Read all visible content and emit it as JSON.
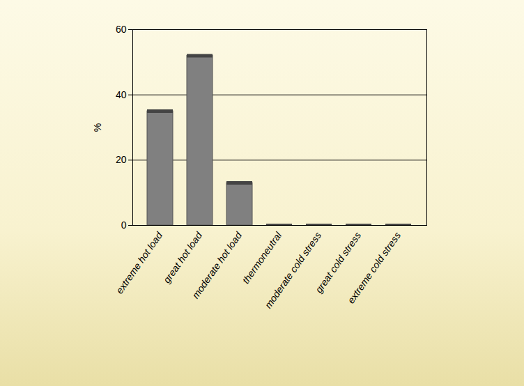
{
  "chart_data": {
    "type": "bar",
    "categories": [
      "extreme hot load",
      "great hot load",
      "moderate hot load",
      "thermoneutral",
      "moderate cold stress",
      "great cold stress",
      "extreme cold stress"
    ],
    "values": [
      35,
      52,
      13,
      0,
      0,
      0,
      0
    ],
    "color": "#808080",
    "y_label": "%",
    "ylim": [
      0,
      60
    ],
    "yticks": [
      0,
      20,
      40,
      60
    ],
    "grid": true
  }
}
